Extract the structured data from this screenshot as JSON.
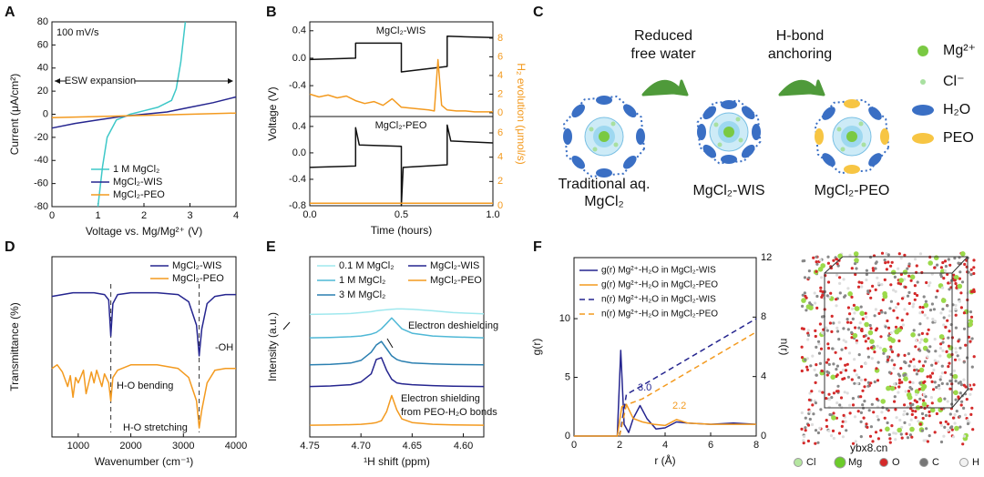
{
  "panels": [
    "A",
    "B",
    "C",
    "D",
    "E",
    "F"
  ],
  "chart_data": [
    {
      "type": "line",
      "xlabel": "Voltage vs. Mg/Mg²⁺ (V)",
      "ylabel": "Current (μA/cm²)",
      "xlim": [
        0,
        4
      ],
      "xticks": [
        0,
        1,
        2,
        3,
        4
      ],
      "ylim": [
        -80,
        80
      ],
      "yticks": [
        -80,
        -60,
        -40,
        -20,
        0,
        20,
        40,
        60,
        80
      ],
      "annotations": [
        "100 mV/s",
        "ESW expansion"
      ],
      "series": [
        {
          "name": "1 M MgCl₂",
          "color": "#3ec8c8",
          "x": [
            1.0,
            1.1,
            1.2,
            1.4,
            1.7,
            2.0,
            2.3,
            2.6,
            2.7,
            2.8,
            2.9
          ],
          "values": [
            -80,
            -45,
            -20,
            -5,
            0,
            3,
            6,
            12,
            22,
            45,
            80
          ]
        },
        {
          "name": "MgCl₂-WIS",
          "color": "#25258f",
          "x": [
            0,
            0.5,
            1,
            1.5,
            2,
            2.5,
            3,
            3.5,
            4
          ],
          "values": [
            -12,
            -8,
            -5,
            -2,
            0,
            2,
            6,
            10,
            15
          ]
        },
        {
          "name": "MgCl₂-PEO",
          "color": "#f39a1f",
          "x": [
            0,
            1,
            2,
            3,
            4
          ],
          "values": [
            -3,
            -2,
            -1,
            0,
            1
          ]
        }
      ]
    },
    {
      "type": "line",
      "annotations": [
        "MgCl₂-WIS"
      ],
      "xlim": [
        0,
        1
      ],
      "ylim": [
        -0.85,
        0.53
      ],
      "yticks": [
        -0.4,
        {
          "value": 0,
          "label": "0.0"
        },
        0.4
      ],
      "y2lim": [
        -0.4,
        9.75
      ],
      "y2ticks": [
        0,
        2,
        4,
        6,
        8
      ],
      "series": [
        {
          "color": "#111111",
          "x": [
            0,
            0.25,
            0.25,
            0.5,
            0.5,
            0.75,
            0.75,
            1.0
          ],
          "values": [
            -0.02,
            0,
            0.22,
            0.22,
            -0.2,
            -0.12,
            0.32,
            0.3
          ]
        },
        {
          "color": "#f39a1f",
          "axis": "y2",
          "x": [
            0,
            0.05,
            0.1,
            0.15,
            0.2,
            0.25,
            0.3,
            0.35,
            0.4,
            0.45,
            0.5,
            0.55,
            0.6,
            0.65,
            0.68,
            0.7,
            0.72,
            0.75,
            0.8,
            0.85,
            0.9,
            0.95,
            1.0
          ],
          "values": [
            2.0,
            1.7,
            1.9,
            1.6,
            1.8,
            1.3,
            1.0,
            1.2,
            0.8,
            1.5,
            0.6,
            0.5,
            0.4,
            0.3,
            0.2,
            5.7,
            0.8,
            0.3,
            0.2,
            0.2,
            0.1,
            0.1,
            0.1
          ]
        }
      ]
    },
    {
      "type": "line",
      "annotations": [
        "MgCl₂-PEO"
      ],
      "xlabel": "Time (hours)",
      "ylabel": "Voltage (V)",
      "y2label": "H₂ evolution (μmol/s)",
      "xlim": [
        0,
        1
      ],
      "xticks": [
        {
          "value": 0,
          "label": "0.0"
        },
        0.5,
        {
          "value": 1,
          "label": "1.0"
        }
      ],
      "ylim": [
        -0.8,
        0.55
      ],
      "yticks": [
        -0.8,
        -0.4,
        {
          "value": 0,
          "label": "0.0"
        },
        0.4
      ],
      "y2lim": [
        0,
        7.35
      ],
      "y2ticks": [
        0,
        2,
        4,
        6
      ],
      "series": [
        {
          "color": "#111111",
          "x": [
            0,
            0.25,
            0.25,
            0.27,
            0.5,
            0.5,
            0.51,
            0.75,
            0.75,
            0.77,
            1.0
          ],
          "values": [
            -0.22,
            -0.2,
            0.38,
            0.12,
            0.1,
            -0.8,
            -0.22,
            -0.18,
            0.42,
            0.18,
            0.15
          ]
        },
        {
          "color": "#f39a1f",
          "axis": "y2",
          "x": [
            0,
            1
          ],
          "values": [
            0.2,
            0.2
          ]
        }
      ]
    },
    {
      "type": "line",
      "xlabel": "Wavenumber (cm⁻¹)",
      "ylabel": "Transmittance (%)",
      "xlim": [
        500,
        4000
      ],
      "xticks": [
        1000,
        2000,
        3000,
        4000
      ],
      "ylim": [
        0,
        100
      ],
      "reference_lines": [
        1620,
        3300
      ],
      "annotations": [
        "H-O bending",
        "H-O stretching",
        "-OH"
      ],
      "series": [
        {
          "name": "MgCl₂-WIS",
          "color": "#25258f",
          "x": [
            500,
            700,
            900,
            1100,
            1300,
            1500,
            1580,
            1620,
            1660,
            1750,
            2000,
            2500,
            2900,
            3100,
            3250,
            3300,
            3350,
            3450,
            3600,
            3800,
            4000
          ],
          "values": [
            78,
            79,
            80,
            80,
            80,
            79,
            76,
            56,
            74,
            79,
            80,
            80,
            79,
            75,
            62,
            45,
            60,
            74,
            78,
            79,
            79
          ]
        },
        {
          "name": "MgCl₂-PEO",
          "color": "#f39a1f",
          "x": [
            500,
            600,
            700,
            800,
            850,
            900,
            950,
            1000,
            1100,
            1150,
            1250,
            1300,
            1350,
            1450,
            1500,
            1580,
            1620,
            1660,
            1750,
            2000,
            2500,
            2900,
            3100,
            3250,
            3300,
            3350,
            3450,
            3600,
            3800,
            4000
          ],
          "values": [
            38,
            40,
            36,
            28,
            34,
            22,
            33,
            30,
            37,
            24,
            36,
            30,
            37,
            28,
            35,
            30,
            20,
            33,
            37,
            40,
            40,
            38,
            33,
            20,
            5,
            15,
            30,
            37,
            38,
            38
          ]
        }
      ]
    },
    {
      "type": "line",
      "xlabel": "¹H shift (ppm)",
      "ylabel": "Intensity (a.u.)",
      "xlim": [
        4.75,
        4.58
      ],
      "xticks": [
        4.75,
        {
          "value": 4.7,
          "label": "4.70"
        },
        4.65,
        {
          "value": 4.6,
          "label": "4.60"
        }
      ],
      "ylim": [
        0,
        100
      ],
      "annotations": [
        "Electron deshielding",
        "Electron shielding",
        "from PEO-H₂O bonds"
      ],
      "series": [
        {
          "name": "0.1 M MgCl₂",
          "color": "#9fe8ee",
          "x": [
            4.75,
            4.73,
            4.71,
            4.7,
            4.69,
            4.685,
            4.68,
            4.675,
            4.67,
            4.665,
            4.66,
            4.65,
            4.63,
            4.61,
            4.58
          ],
          "values": [
            68,
            68.2,
            68.5,
            69,
            69.5,
            70,
            70.3,
            70.6,
            70.8,
            71,
            71,
            70.8,
            70,
            69,
            68.3
          ]
        },
        {
          "name": "1 M MgCl₂",
          "color": "#4fb8d6",
          "x": [
            4.75,
            4.73,
            4.71,
            4.7,
            4.69,
            4.685,
            4.68,
            4.675,
            4.67,
            4.665,
            4.66,
            4.65,
            4.63,
            4.61,
            4.58
          ],
          "values": [
            55,
            55.2,
            55.6,
            56,
            57,
            58,
            60,
            63,
            66,
            63,
            60,
            57.5,
            56,
            55.5,
            55
          ]
        },
        {
          "name": "3 M MgCl₂",
          "color": "#2a7fb0",
          "x": [
            4.75,
            4.73,
            4.71,
            4.7,
            4.69,
            4.685,
            4.68,
            4.675,
            4.67,
            4.665,
            4.66,
            4.65,
            4.63,
            4.61,
            4.58
          ],
          "values": [
            40,
            40.3,
            41,
            42.5,
            47,
            51,
            53,
            49,
            45,
            43,
            42,
            41,
            40.5,
            40.2,
            40
          ]
        },
        {
          "name": "MgCl₂-WIS",
          "color": "#25258f",
          "x": [
            4.75,
            4.73,
            4.71,
            4.7,
            4.69,
            4.685,
            4.68,
            4.675,
            4.67,
            4.665,
            4.66,
            4.65,
            4.63,
            4.61,
            4.58
          ],
          "values": [
            28,
            28.3,
            29,
            30.5,
            35,
            43,
            44,
            37,
            32,
            30,
            29.5,
            29,
            28.5,
            28.2,
            28
          ]
        },
        {
          "name": "MgCl₂-PEO",
          "color": "#f39a1f",
          "x": [
            4.75,
            4.73,
            4.71,
            4.7,
            4.69,
            4.685,
            4.68,
            4.675,
            4.67,
            4.665,
            4.66,
            4.65,
            4.63,
            4.61,
            4.58
          ],
          "values": [
            6.5,
            6.6,
            6.8,
            7,
            7.5,
            8,
            9,
            14,
            23,
            15,
            10,
            8,
            7,
            6.7,
            6.5
          ]
        }
      ]
    },
    {
      "type": "line",
      "xlabel": "r (Å)",
      "ylabel": "g(r)",
      "y2label": "n(r)",
      "xlim": [
        0,
        8
      ],
      "xticks": [
        0,
        2,
        4,
        6,
        8
      ],
      "ylim": [
        0,
        15.2
      ],
      "yticks": [
        0,
        5,
        10
      ],
      "y2lim": [
        0,
        12
      ],
      "y2ticks": [
        0,
        4,
        8,
        12
      ],
      "annotations": [
        "3.0",
        "2.2"
      ],
      "series": [
        {
          "name": "g(r) Mg²⁺-H₂O in MgCl₂-WIS",
          "color": "#25258f",
          "x": [
            0,
            1.9,
            2.05,
            2.2,
            2.4,
            2.6,
            2.9,
            3.2,
            3.6,
            4,
            4.5,
            5,
            6,
            7,
            8
          ],
          "values": [
            0,
            0,
            7.3,
            1,
            0.3,
            1.5,
            2.6,
            1.5,
            0.6,
            0.7,
            1.2,
            1.1,
            1,
            1.1,
            1
          ]
        },
        {
          "name": "g(r) Mg²⁺-H₂O in MgCl₂-PEO",
          "color": "#f39a1f",
          "x": [
            0,
            1.9,
            2.1,
            2.3,
            2.6,
            3,
            3.5,
            4,
            4.5,
            5,
            6,
            7,
            8
          ],
          "values": [
            0,
            0,
            2.5,
            2.7,
            1.5,
            1.2,
            1,
            0.9,
            1.4,
            1.1,
            1,
            1,
            1
          ]
        },
        {
          "name": "n(r) Mg²⁺-H₂O in MgCl₂-WIS",
          "color": "#25258f",
          "linestyle": "dashed",
          "axis": "y2",
          "x": [
            2.0,
            2.3,
            3,
            8
          ],
          "values": [
            0,
            2.8,
            3.4,
            7.9
          ]
        },
        {
          "name": "n(r) Mg²⁺-H₂O in MgCl₂-PEO",
          "color": "#f39a1f",
          "linestyle": "dashed",
          "axis": "y2",
          "x": [
            2.0,
            2.3,
            3,
            8
          ],
          "values": [
            0,
            2.1,
            2.5,
            7.0
          ]
        }
      ]
    }
  ],
  "diagram": {
    "steps": [
      {
        "label": [
          "Traditional aq.",
          "MgCl₂"
        ]
      },
      {
        "label": [
          "MgCl₂-WIS"
        ]
      },
      {
        "label": [
          "MgCl₂-PEO"
        ]
      }
    ],
    "arrows": [
      {
        "label": [
          "Reduced",
          "free water"
        ]
      },
      {
        "label": [
          "H-bond",
          "anchoring"
        ]
      }
    ],
    "legend": [
      "Mg²⁺",
      "Cl⁻",
      "H₂O",
      "PEO"
    ]
  },
  "snapshot_legend": [
    "Cl",
    "Mg",
    "O",
    "C",
    "H"
  ],
  "watermark": "ybx8.cn"
}
